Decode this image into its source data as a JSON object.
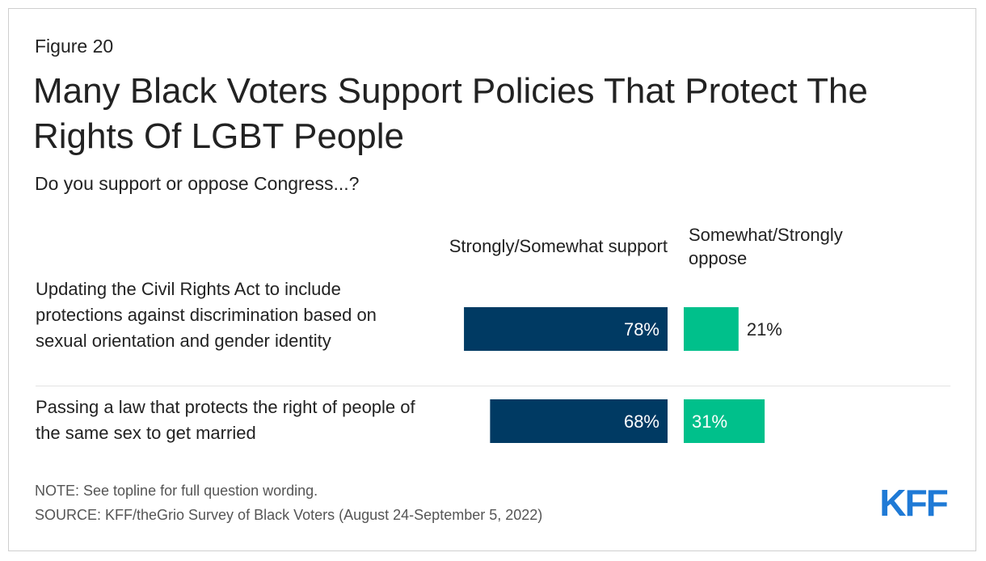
{
  "figure_label": "Figure 20",
  "title": "Many Black Voters Support Policies That Protect The Rights Of LGBT People",
  "subtitle": "Do you support or oppose Congress...?",
  "colors": {
    "support": "#003a63",
    "oppose": "#00c08b",
    "support_text": "#ffffff",
    "oppose_text_outside": "#222222",
    "oppose_text_inside": "#ffffff",
    "logo": "#1f7ad6"
  },
  "logo_text": "KFF",
  "chart_data": {
    "type": "bar",
    "orientation": "horizontal-diverging",
    "title": "Many Black Voters Support Policies That Protect The Rights Of LGBT People",
    "subtitle": "Do you support or oppose Congress...?",
    "categories": [
      "Updating the Civil Rights Act to include protections against discrimination based on sexual orientation and gender identity",
      "Passing a law that protects the right of people of the same sex to get married"
    ],
    "series": [
      {
        "name": "Strongly/Somewhat support",
        "values": [
          78,
          68
        ],
        "labels": [
          "78%",
          "68%"
        ]
      },
      {
        "name": "Somewhat/Strongly oppose",
        "values": [
          21,
          31
        ],
        "labels": [
          "21%",
          "31%"
        ]
      }
    ],
    "unit": "%",
    "xlim": [
      0,
      100
    ],
    "grid": false,
    "legend": "top, above bars"
  },
  "note": "NOTE: See topline for full question wording.",
  "source": "SOURCE: KFF/theGrio Survey of Black Voters (August 24-September 5, 2022)"
}
